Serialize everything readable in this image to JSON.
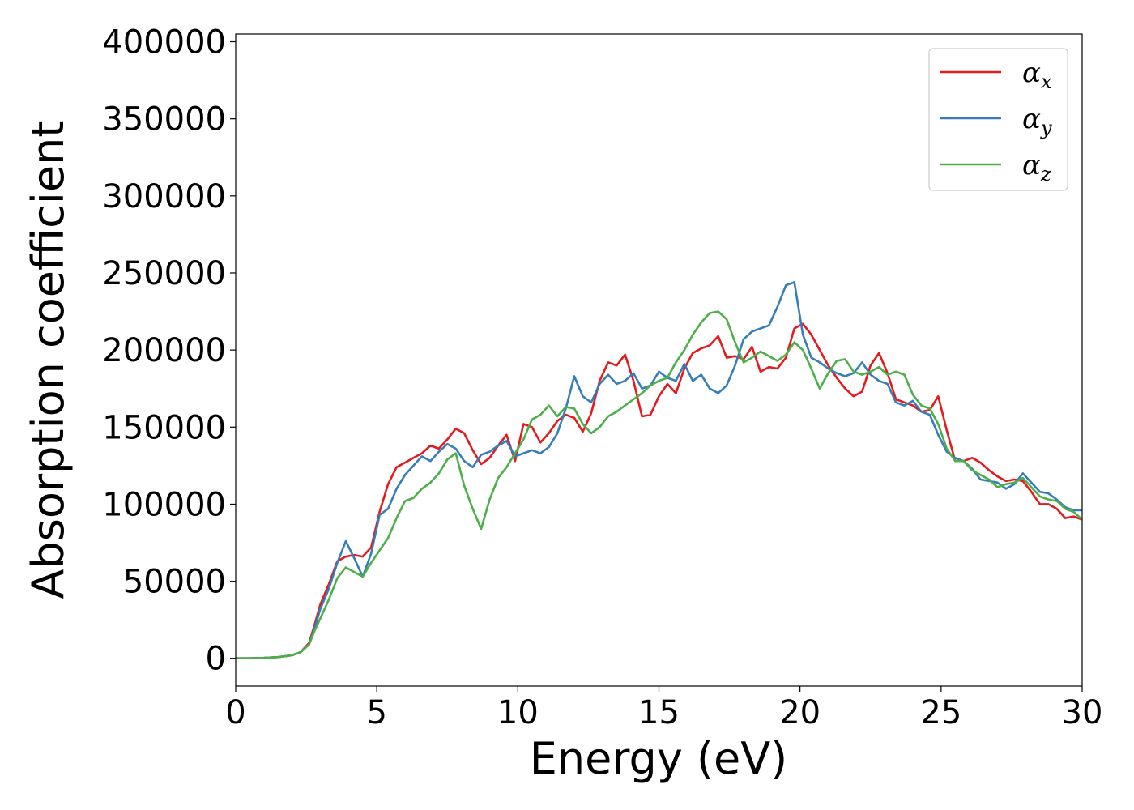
{
  "chart_data": {
    "type": "line",
    "xlabel": "Energy (eV)",
    "ylabel": "Absorption coefficient",
    "xlim": [
      0,
      30
    ],
    "ylim": [
      -18000,
      405000
    ],
    "xticks": [
      "0",
      "5",
      "10",
      "15",
      "20",
      "25",
      "30"
    ],
    "yticks": [
      "0",
      "50000",
      "100000",
      "150000",
      "200000",
      "250000",
      "300000",
      "350000",
      "400000"
    ],
    "grid": false,
    "legend_position": "top-right",
    "x": [
      0,
      0.5,
      1.0,
      1.5,
      2.0,
      2.3,
      2.6,
      2.8,
      3.0,
      3.3,
      3.6,
      3.9,
      4.2,
      4.5,
      4.8,
      5.1,
      5.4,
      5.7,
      6.0,
      6.3,
      6.6,
      6.9,
      7.2,
      7.5,
      7.8,
      8.1,
      8.4,
      8.7,
      9.0,
      9.3,
      9.6,
      9.9,
      10.2,
      10.5,
      10.8,
      11.1,
      11.4,
      11.7,
      12.0,
      12.3,
      12.6,
      12.9,
      13.2,
      13.5,
      13.8,
      14.1,
      14.4,
      14.7,
      15.0,
      15.3,
      15.6,
      15.9,
      16.2,
      16.5,
      16.8,
      17.1,
      17.4,
      17.7,
      18.0,
      18.3,
      18.6,
      18.9,
      19.2,
      19.5,
      19.8,
      20.1,
      20.4,
      20.7,
      21.0,
      21.3,
      21.6,
      21.9,
      22.2,
      22.5,
      22.8,
      23.1,
      23.4,
      23.7,
      24.0,
      24.3,
      24.6,
      24.9,
      25.2,
      25.5,
      25.8,
      26.1,
      26.4,
      26.7,
      27.0,
      27.3,
      27.6,
      27.9,
      28.2,
      28.5,
      28.8,
      29.1,
      29.4,
      29.7,
      30.0
    ],
    "series": [
      {
        "name": "α",
        "subscript": "x",
        "color": "#e41a1c",
        "values": [
          0,
          0,
          300,
          800,
          2000,
          4000,
          10000,
          22000,
          35000,
          48000,
          63000,
          66000,
          67000,
          66000,
          72000,
          95000,
          113000,
          124000,
          127000,
          130000,
          133000,
          138000,
          136000,
          142000,
          149000,
          146000,
          135000,
          126000,
          130000,
          138000,
          145000,
          128000,
          152000,
          150000,
          140000,
          146000,
          154000,
          158000,
          156000,
          147000,
          159000,
          180000,
          192000,
          190000,
          197000,
          180000,
          157000,
          158000,
          170000,
          178000,
          172000,
          188000,
          198000,
          201000,
          203000,
          209000,
          195000,
          196000,
          194000,
          202000,
          186000,
          189000,
          188000,
          195000,
          214000,
          217000,
          210000,
          200000,
          190000,
          182000,
          175000,
          170000,
          173000,
          190000,
          198000,
          185000,
          168000,
          166000,
          164000,
          160000,
          161000,
          170000,
          148000,
          128000,
          128000,
          130000,
          127000,
          122000,
          118000,
          115000,
          116000,
          115000,
          108000,
          100000,
          100000,
          97000,
          91000,
          92000,
          90000
        ]
      },
      {
        "name": "α",
        "subscript": "y",
        "color": "#377eb8",
        "values": [
          0,
          0,
          300,
          800,
          2000,
          4000,
          9000,
          20000,
          32000,
          45000,
          62000,
          76000,
          65000,
          53000,
          68000,
          93000,
          97000,
          110000,
          119000,
          125000,
          131000,
          128000,
          134000,
          139000,
          136000,
          128000,
          124000,
          132000,
          134000,
          138000,
          141000,
          131000,
          133000,
          135000,
          133000,
          137000,
          146000,
          162000,
          183000,
          170000,
          166000,
          178000,
          184000,
          178000,
          180000,
          185000,
          175000,
          177000,
          186000,
          182000,
          180000,
          191000,
          180000,
          184000,
          175000,
          172000,
          177000,
          190000,
          207000,
          212000,
          214000,
          216000,
          228000,
          242000,
          244000,
          210000,
          195000,
          192000,
          188000,
          185000,
          183000,
          185000,
          192000,
          184000,
          180000,
          178000,
          166000,
          164000,
          167000,
          160000,
          158000,
          145000,
          134000,
          130000,
          128000,
          123000,
          116000,
          115000,
          114000,
          110000,
          113000,
          120000,
          114000,
          108000,
          107000,
          103000,
          98000,
          96000,
          96000
        ]
      },
      {
        "name": "α",
        "subscript": "z",
        "color": "#4daf4a",
        "values": [
          0,
          0,
          300,
          800,
          2000,
          4000,
          9000,
          18000,
          26000,
          38000,
          52000,
          59000,
          56000,
          53000,
          62000,
          70000,
          78000,
          91000,
          102000,
          104000,
          110000,
          114000,
          120000,
          129000,
          133000,
          112000,
          97000,
          84000,
          103000,
          117000,
          124000,
          133000,
          142000,
          155000,
          158000,
          164000,
          157000,
          163000,
          162000,
          152000,
          146000,
          150000,
          157000,
          160000,
          164000,
          168000,
          172000,
          177000,
          180000,
          182000,
          192000,
          200000,
          210000,
          218000,
          224000,
          225000,
          220000,
          205000,
          192000,
          195000,
          199000,
          196000,
          193000,
          197000,
          205000,
          200000,
          188000,
          175000,
          185000,
          193000,
          194000,
          186000,
          184000,
          186000,
          189000,
          184000,
          186000,
          184000,
          171000,
          164000,
          162000,
          152000,
          136000,
          128000,
          128000,
          122000,
          119000,
          116000,
          111000,
          113000,
          114000,
          117000,
          111000,
          105000,
          103000,
          102000,
          97000,
          95000,
          90000
        ]
      }
    ]
  }
}
